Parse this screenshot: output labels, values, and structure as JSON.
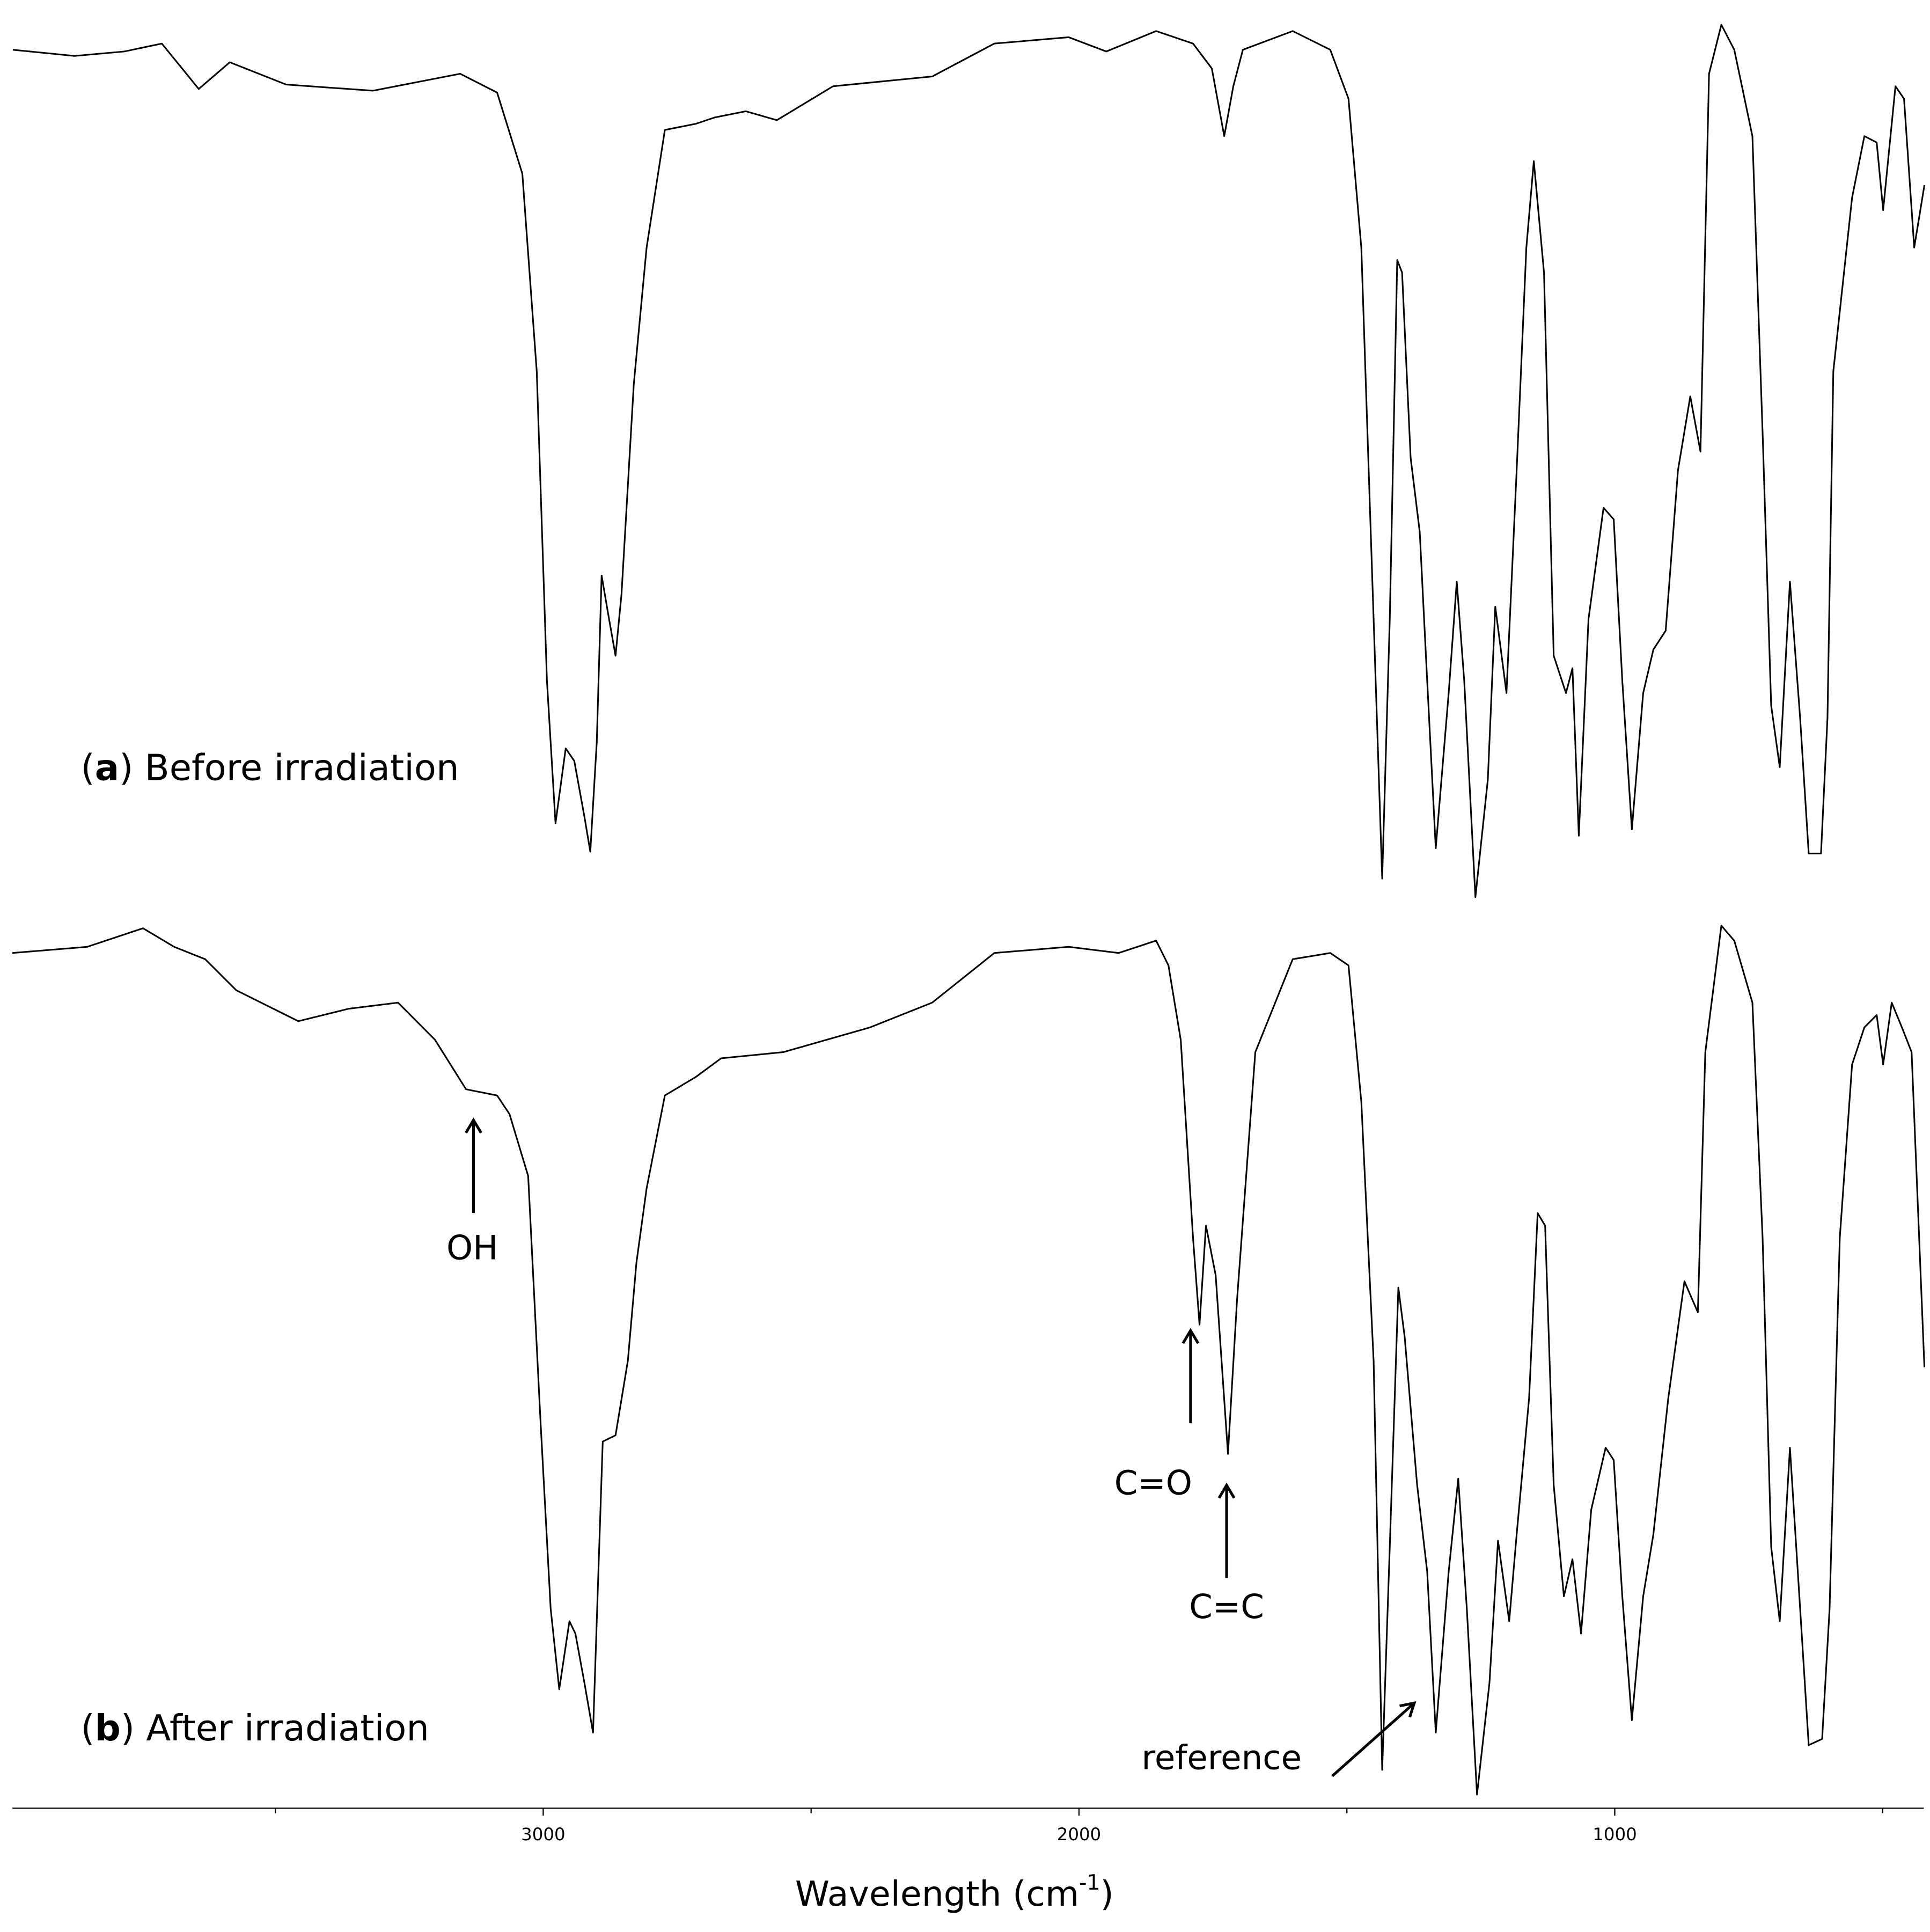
{
  "chart_data": [
    {
      "type": "line",
      "color": "#000000",
      "label_parts": [
        "(",
        "a",
        ") Before irradiation"
      ],
      "xlim": [
        4000,
        400
      ],
      "ylim": [
        0,
        100
      ],
      "x": [
        3990,
        3875,
        3782,
        3712,
        3666,
        3643,
        3585,
        3480,
        3318,
        3155,
        3086,
        3039,
        3012,
        2993,
        2977,
        2958,
        2942,
        2923,
        2912,
        2900,
        2891,
        2877,
        2865,
        2854,
        2831,
        2807,
        2773,
        2715,
        2680,
        2622,
        2564,
        2459,
        2274,
        2158,
        2019,
        1949,
        1856,
        1787,
        1752,
        1729,
        1712,
        1694,
        1601,
        1531,
        1497,
        1473,
        1450,
        1434,
        1420,
        1406,
        1397,
        1381,
        1364,
        1350,
        1334,
        1310,
        1295,
        1281,
        1260,
        1237,
        1223,
        1202,
        1183,
        1165,
        1151,
        1132,
        1114,
        1091,
        1079,
        1067,
        1049,
        1021,
        1002,
        986,
        968,
        947,
        928,
        905,
        882,
        859,
        840,
        824,
        801,
        777,
        743,
        724,
        708,
        692,
        673,
        654,
        638,
        615,
        603,
        592,
        557,
        534,
        511,
        499,
        476,
        460,
        441,
        422
      ],
      "values": [
        96.5,
        95.8,
        96.3,
        97.2,
        93.8,
        92.1,
        95.1,
        92.6,
        91.9,
        93.8,
        91.7,
        82.6,
        60.4,
        25.7,
        9.7,
        18.1,
        16.7,
        10.4,
        6.5,
        18.8,
        37.5,
        32.6,
        28.5,
        35.4,
        59.0,
        74.3,
        87.5,
        88.2,
        88.9,
        89.6,
        88.6,
        92.4,
        93.5,
        97.2,
        97.9,
        96.3,
        98.6,
        97.2,
        94.4,
        86.8,
        92.4,
        96.5,
        98.6,
        96.5,
        91.0,
        74.3,
        32.6,
        3.5,
        32.6,
        72.9,
        71.5,
        50.7,
        42.4,
        25.7,
        6.9,
        24.3,
        36.8,
        25.7,
        1.4,
        14.6,
        34.0,
        24.3,
        49.3,
        74.3,
        84.0,
        71.5,
        28.5,
        24.3,
        27.1,
        8.3,
        32.6,
        45.1,
        43.8,
        25.7,
        9.0,
        24.3,
        29.2,
        31.3,
        49.3,
        57.6,
        51.4,
        93.8,
        99.3,
        96.5,
        86.8,
        53.5,
        22.9,
        16.0,
        36.8,
        21.5,
        6.3,
        6.3,
        21.5,
        60.4,
        79.9,
        86.8,
        86.1,
        78.5,
        92.4,
        91.0,
        74.3,
        81.3
      ]
    },
    {
      "type": "line",
      "color": "#000000",
      "label_parts": [
        "(",
        "b",
        ") After irradiation"
      ],
      "xlim": [
        4000,
        400
      ],
      "ylim": [
        0,
        100
      ],
      "xticks": [
        3000,
        2000,
        1000
      ],
      "minor_xticks": [
        3500,
        2500,
        1500,
        500
      ],
      "xlabel": [
        "Wavelength (cm",
        "-1",
        ")"
      ],
      "annotations": [
        {
          "text": "OH"
        },
        {
          "text": "C=O"
        },
        {
          "text": "C=C"
        },
        {
          "text": "reference"
        }
      ],
      "x": [
        3991,
        3851,
        3747,
        3689,
        3631,
        3573,
        3457,
        3364,
        3271,
        3202,
        3144,
        3086,
        3063,
        3028,
        3005,
        2986,
        2970,
        2951,
        2940,
        2923,
        2907,
        2889,
        2865,
        2842,
        2826,
        2807,
        2773,
        2715,
        2668,
        2552,
        2390,
        2274,
        2158,
        2019,
        1926,
        1856,
        1833,
        1810,
        1787,
        1775,
        1763,
        1745,
        1722,
        1705,
        1671,
        1601,
        1531,
        1497,
        1473,
        1450,
        1434,
        1420,
        1404,
        1392,
        1369,
        1350,
        1334,
        1310,
        1292,
        1276,
        1257,
        1234,
        1218,
        1197,
        1183,
        1160,
        1144,
        1130,
        1114,
        1095,
        1079,
        1063,
        1044,
        1017,
        1002,
        986,
        968,
        947,
        928,
        900,
        870,
        845,
        831,
        801,
        777,
        743,
        724,
        708,
        692,
        673,
        654,
        638,
        613,
        599,
        580,
        557,
        534,
        511,
        499,
        483,
        464,
        446,
        422
      ],
      "values": [
        95.8,
        96.5,
        98.6,
        96.5,
        95.1,
        91.6,
        88.1,
        89.5,
        90.2,
        86.0,
        80.4,
        79.7,
        77.6,
        70.6,
        42.7,
        21.7,
        12.6,
        20.3,
        18.9,
        13.3,
        7.7,
        40.6,
        41.3,
        49.7,
        60.8,
        69.2,
        79.7,
        81.8,
        83.9,
        84.6,
        87.4,
        90.2,
        95.8,
        96.5,
        95.8,
        97.2,
        94.4,
        86.0,
        63.6,
        53.8,
        65.0,
        59.4,
        39.2,
        56.6,
        84.6,
        95.1,
        95.8,
        94.4,
        79.0,
        49.7,
        3.5,
        28.7,
        58.0,
        52.4,
        35.7,
        25.9,
        7.7,
        25.9,
        36.4,
        21.7,
        0.7,
        13.3,
        29.4,
        20.3,
        30.1,
        45.5,
        66.4,
        65.0,
        35.7,
        23.1,
        27.3,
        18.9,
        32.9,
        39.9,
        38.5,
        23.1,
        9.1,
        23.1,
        30.1,
        45.5,
        58.7,
        55.2,
        84.6,
        98.9,
        97.2,
        90.2,
        63.6,
        28.7,
        20.3,
        39.9,
        21.7,
        6.3,
        7.0,
        21.7,
        63.6,
        83.2,
        87.4,
        88.8,
        83.2,
        90.2,
        87.4,
        84.6,
        49.0
      ]
    }
  ]
}
